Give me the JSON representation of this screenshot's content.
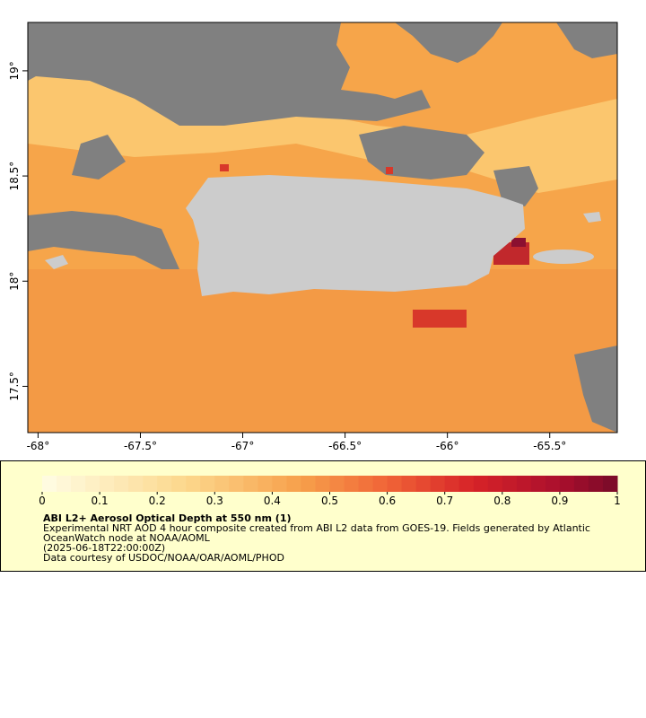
{
  "map": {
    "xlim": [
      -68.05,
      -65.17
    ],
    "ylim": [
      17.28,
      19.23
    ],
    "xticks": [
      {
        "value": -68,
        "label": "-68°"
      },
      {
        "value": -67.5,
        "label": "-67.5°"
      },
      {
        "value": -67,
        "label": "-67°"
      },
      {
        "value": -66.5,
        "label": "-66.5°"
      },
      {
        "value": -66,
        "label": "-66°"
      },
      {
        "value": -65.5,
        "label": "-65.5°"
      }
    ],
    "yticks": [
      {
        "value": 17.5,
        "label": "17.5°"
      },
      {
        "value": 18,
        "label": "18°"
      },
      {
        "value": 18.5,
        "label": "18.5°"
      },
      {
        "value": 19,
        "label": "19°"
      }
    ]
  },
  "colorbar": {
    "ticks": [
      0,
      0.1,
      0.2,
      0.3,
      0.4,
      0.5,
      0.6,
      0.7,
      0.8,
      0.9,
      1
    ]
  },
  "legend": {
    "title": "ABI L2+ Aerosol Optical Depth at 550 nm (1)",
    "lines": [
      "Experimental NRT AOD 4 hour composite created from ABI L2 data from GOES-19. Fields generated by Atlantic",
      "OceanWatch node at NOAA/AOML",
      "(2025-06-18T22:00:00Z)",
      "Data courtesy of USDOC/NOAA/OAR/AOML/PHOD"
    ]
  }
}
